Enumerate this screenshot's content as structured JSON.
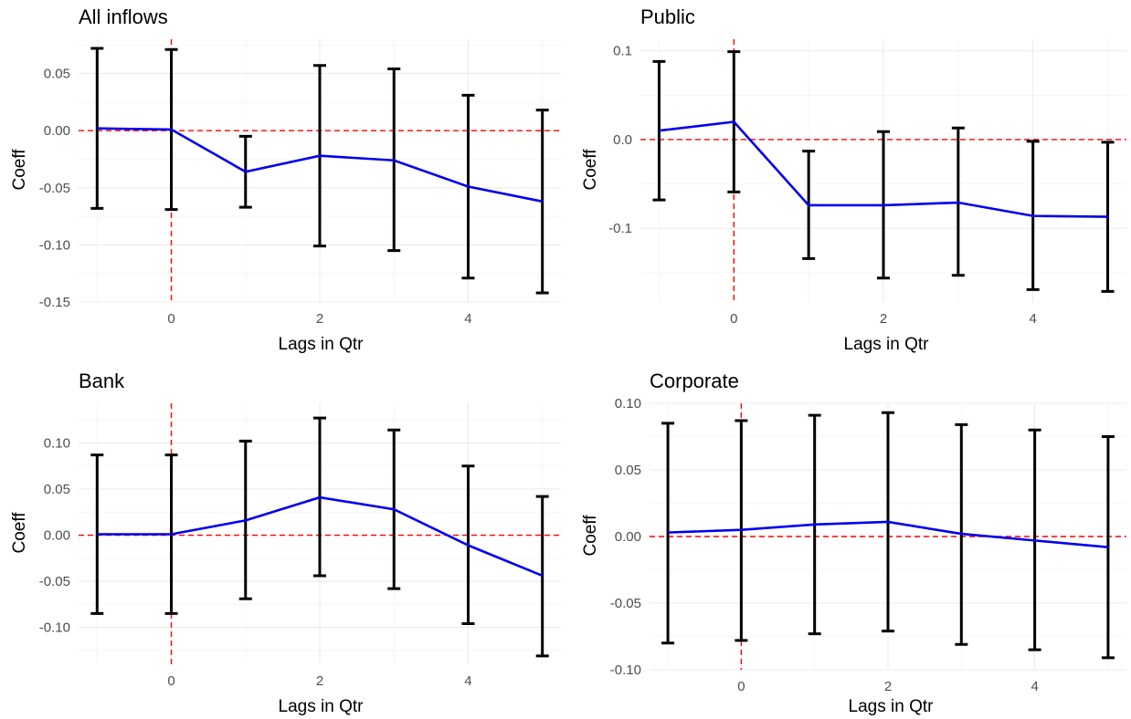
{
  "chart_data": [
    {
      "type": "line",
      "title": "All inflows",
      "xlabel": "Lags in Qtr",
      "ylabel": "Coeff",
      "xlim": [
        -1.25,
        5.25
      ],
      "ylim": [
        -0.15,
        0.08
      ],
      "x_ticks": [
        0,
        2,
        4
      ],
      "x_tick_labels": [
        "0",
        "2",
        "4"
      ],
      "y_ticks": [
        -0.15,
        -0.1,
        -0.05,
        0.0,
        0.05
      ],
      "y_tick_labels": [
        "-0.15",
        "-0.10",
        "-0.05",
        "0.00",
        "0.05"
      ],
      "hline": 0,
      "vline": 0,
      "series": [
        {
          "x": [
            -1,
            0,
            1,
            2,
            3,
            4,
            5
          ],
          "values": [
            0.002,
            0.001,
            -0.036,
            -0.022,
            -0.026,
            -0.049,
            -0.062
          ],
          "lower": [
            -0.068,
            -0.069,
            -0.067,
            -0.101,
            -0.105,
            -0.129,
            -0.142
          ],
          "upper": [
            0.072,
            0.071,
            -0.005,
            0.057,
            0.054,
            0.031,
            0.018
          ]
        }
      ],
      "colors": {
        "line": "#0000ee",
        "error_bar": "#000000",
        "reference": "#ff0000"
      },
      "grid": true
    },
    {
      "type": "line",
      "title": "Public",
      "xlabel": "Lags in Qtr",
      "ylabel": "Coeff",
      "xlim": [
        -1.25,
        5.25
      ],
      "ylim": [
        -0.183,
        0.113
      ],
      "x_ticks": [
        0,
        2,
        4
      ],
      "x_tick_labels": [
        "0",
        "2",
        "4"
      ],
      "y_ticks": [
        -0.1,
        0.0,
        0.1
      ],
      "y_tick_labels": [
        "-0.1",
        "0.0",
        "0.1"
      ],
      "hline": 0,
      "vline": 0,
      "series": [
        {
          "x": [
            -1,
            0,
            1,
            2,
            3,
            4,
            5
          ],
          "values": [
            0.01,
            0.02,
            -0.074,
            -0.074,
            -0.071,
            -0.086,
            -0.087
          ],
          "lower": [
            -0.068,
            -0.059,
            -0.134,
            -0.156,
            -0.153,
            -0.169,
            -0.171
          ],
          "upper": [
            0.088,
            0.099,
            -0.013,
            0.009,
            0.013,
            -0.002,
            -0.003
          ]
        }
      ],
      "colors": {
        "line": "#0000ee",
        "error_bar": "#000000",
        "reference": "#ff0000"
      },
      "grid": true
    },
    {
      "type": "line",
      "title": "Bank",
      "xlabel": "Lags in Qtr",
      "ylabel": "Coeff",
      "xlim": [
        -1.25,
        5.25
      ],
      "ylim": [
        -0.14,
        0.143
      ],
      "x_ticks": [
        0,
        2,
        4
      ],
      "x_tick_labels": [
        "0",
        "2",
        "4"
      ],
      "y_ticks": [
        -0.1,
        -0.05,
        0.0,
        0.05,
        0.1
      ],
      "y_tick_labels": [
        "-0.10",
        "-0.05",
        "0.00",
        "0.05",
        "0.10"
      ],
      "hline": 0,
      "vline": 0,
      "series": [
        {
          "x": [
            -1,
            0,
            1,
            2,
            3,
            4,
            5
          ],
          "values": [
            0.001,
            0.001,
            0.016,
            0.041,
            0.028,
            -0.011,
            -0.044
          ],
          "lower": [
            -0.085,
            -0.085,
            -0.069,
            -0.044,
            -0.058,
            -0.096,
            -0.131
          ],
          "upper": [
            0.087,
            0.087,
            0.102,
            0.127,
            0.114,
            0.075,
            0.042
          ]
        }
      ],
      "colors": {
        "line": "#0000ee",
        "error_bar": "#000000",
        "reference": "#ff0000"
      },
      "grid": true
    },
    {
      "type": "line",
      "title": "Corporate",
      "xlabel": "Lags in Qtr",
      "ylabel": "Coeff",
      "xlim": [
        -1.25,
        5.25
      ],
      "ylim": [
        -0.1,
        0.1
      ],
      "x_ticks": [
        0,
        2,
        4
      ],
      "x_tick_labels": [
        "0",
        "2",
        "4"
      ],
      "y_ticks": [
        -0.1,
        -0.05,
        0.0,
        0.05,
        0.1
      ],
      "y_tick_labels": [
        "-0.10",
        "-0.05",
        "0.00",
        "0.05",
        "0.10"
      ],
      "hline": 0,
      "vline": 0,
      "series": [
        {
          "x": [
            -1,
            0,
            1,
            2,
            3,
            4,
            5
          ],
          "values": [
            0.003,
            0.005,
            0.009,
            0.011,
            0.002,
            -0.003,
            -0.008
          ],
          "lower": [
            -0.08,
            -0.078,
            -0.073,
            -0.071,
            -0.081,
            -0.085,
            -0.091
          ],
          "upper": [
            0.085,
            0.087,
            0.091,
            0.093,
            0.084,
            0.08,
            0.075
          ]
        }
      ],
      "colors": {
        "line": "#0000ee",
        "error_bar": "#000000",
        "reference": "#ff0000"
      },
      "grid": true
    }
  ]
}
